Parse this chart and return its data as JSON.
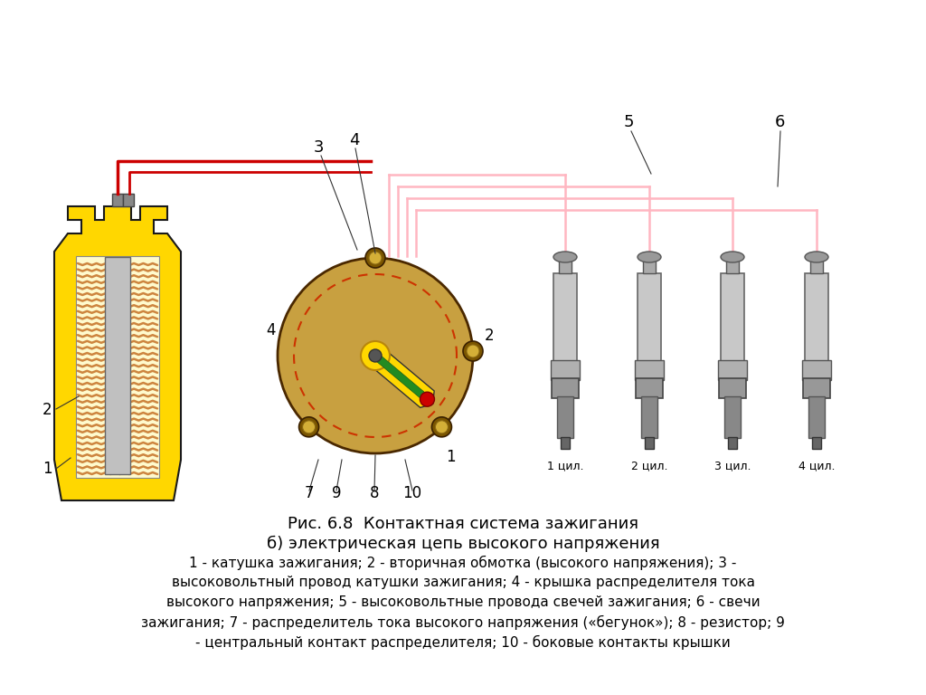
{
  "title_line1": "Рис. 6.8  Контактная система зажигания",
  "title_line2": "б) электрическая цепь высокого напряжения",
  "desc_line1": "1 - катушка зажигания; 2 - вторичная обмотка (высокого напряжения); 3 -",
  "desc_line2": "высоковольтный провод катушки зажигания; 4 - крышка распределителя тока",
  "desc_line3": "высокого напряжения; 5 - высоковольтные провода свечей зажигания; 6 - свечи",
  "desc_line4": "зажигания; 7 - распределитель тока высокого напряжения («бегунок»); 8 - резистор; 9",
  "desc_line5": "- центральный контакт распределителя; 10 - боковые контакты крышки",
  "bg_color": "#ffffff",
  "coil_body_color": "#FFD700",
  "coil_winding_color": "#CD853F",
  "distributor_body_color": "#C8A040",
  "pink_wire_color": "#FFB6C1",
  "red_wire_color": "#CC0000",
  "label_color": "#000000",
  "dashed_circle_color": "#CC3300",
  "plug_labels": [
    "1 цил.",
    "2 цил.",
    "3 цил.",
    "4 цил."
  ]
}
